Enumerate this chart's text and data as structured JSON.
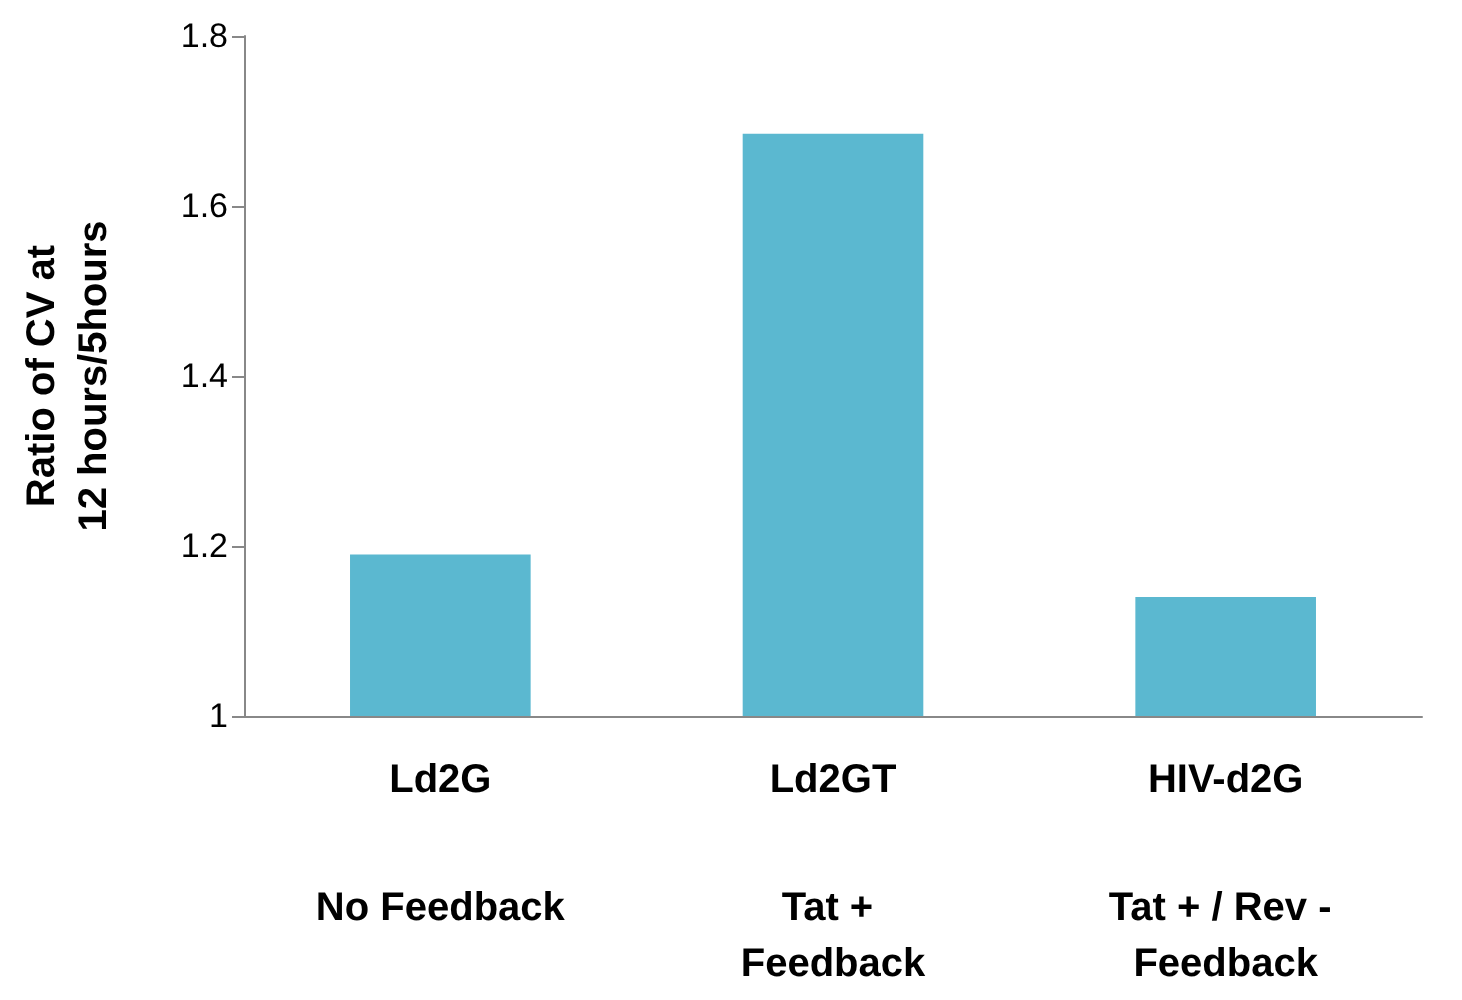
{
  "chart_data": {
    "type": "bar",
    "ylabel": "Ratio of CV at\n12 hours/5hours",
    "categories": [
      "Ld2G",
      "Ld2GT",
      "HIV-d2G"
    ],
    "values": [
      1.19,
      1.685,
      1.14
    ],
    "color": "#5bb8d0",
    "ylim": [
      1,
      1.8
    ],
    "yticks": [
      1,
      1.2,
      1.4,
      1.6,
      1.8
    ],
    "grid": false,
    "annotations": [
      "No Feedback",
      "Tat + Feedback",
      "Tat + / Rev - Feedback"
    ]
  }
}
